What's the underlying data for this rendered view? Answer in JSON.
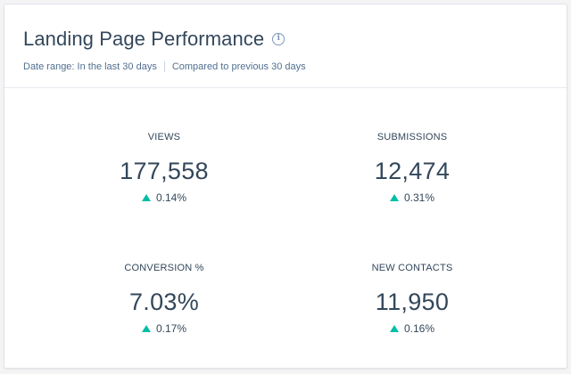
{
  "header": {
    "title": "Landing Page Performance",
    "info_icon": "info-icon",
    "date_range": "Date range: In the last 30 days",
    "compared_to": "Compared to previous 30 days"
  },
  "metrics": [
    {
      "label": "VIEWS",
      "value": "177,558",
      "change": "0.14%",
      "trend": "up"
    },
    {
      "label": "SUBMISSIONS",
      "value": "12,474",
      "change": "0.31%",
      "trend": "up"
    },
    {
      "label": "CONVERSION %",
      "value": "7.03%",
      "change": "0.17%",
      "trend": "up"
    },
    {
      "label": "NEW CONTACTS",
      "value": "11,950",
      "change": "0.16%",
      "trend": "up"
    }
  ],
  "colors": {
    "text": "#33475b",
    "subtext": "#516f90",
    "trend_up": "#00bda5",
    "border": "#dfe3eb"
  }
}
